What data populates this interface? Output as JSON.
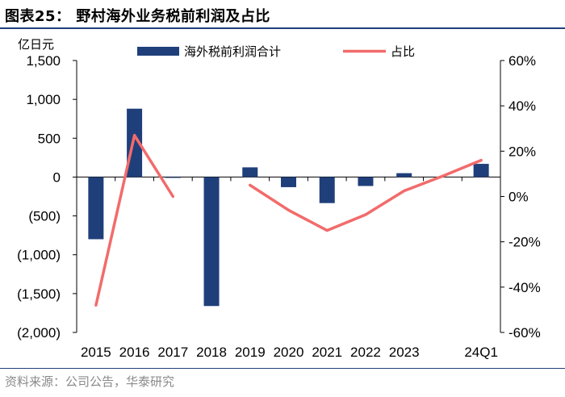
{
  "title": "图表25： 野村海外业务税前利润及占比",
  "source": "资料来源：公司公告，华泰研究",
  "chart_data": {
    "type": "bar+line",
    "categories": [
      "2015",
      "2016",
      "2017",
      "2018",
      "2019",
      "2020",
      "2021",
      "2022",
      "2023",
      "",
      "24Q1"
    ],
    "y_left": {
      "unit": "亿日元",
      "ylim": [
        -2000,
        1500
      ],
      "ticks": [
        1500,
        1000,
        500,
        0,
        -500,
        -1000,
        -1500,
        -2000
      ],
      "tick_labels": [
        "1,500",
        "1,000",
        "500",
        "0",
        "(500)",
        "(1,000)",
        "(1,500)",
        "(2,000)"
      ]
    },
    "y_right": {
      "ylim": [
        -60,
        60
      ],
      "ticks": [
        60,
        40,
        20,
        0,
        -20,
        -40,
        -60
      ],
      "tick_labels": [
        "60%",
        "40%",
        "20%",
        "0%",
        "-20%",
        "-40%",
        "-60%"
      ]
    },
    "series": [
      {
        "name": "海外税前利润合计",
        "type": "bar",
        "axis": "left",
        "color": "#1f3f7a",
        "values": [
          -800,
          880,
          -5,
          -1660,
          125,
          -130,
          -335,
          -115,
          50,
          null,
          170
        ]
      },
      {
        "name": "占比",
        "type": "line",
        "axis": "right",
        "color": "#f26b6b",
        "segments": [
          [
            [
              0,
              -48
            ],
            [
              1,
              27
            ],
            [
              2,
              0
            ]
          ],
          [
            [
              4,
              5
            ],
            [
              5,
              -6
            ],
            [
              6,
              -15
            ],
            [
              7,
              -8
            ],
            [
              8,
              2.5
            ],
            [
              9,
              9
            ],
            [
              10,
              16
            ]
          ]
        ]
      }
    ],
    "legend_position": "top"
  }
}
